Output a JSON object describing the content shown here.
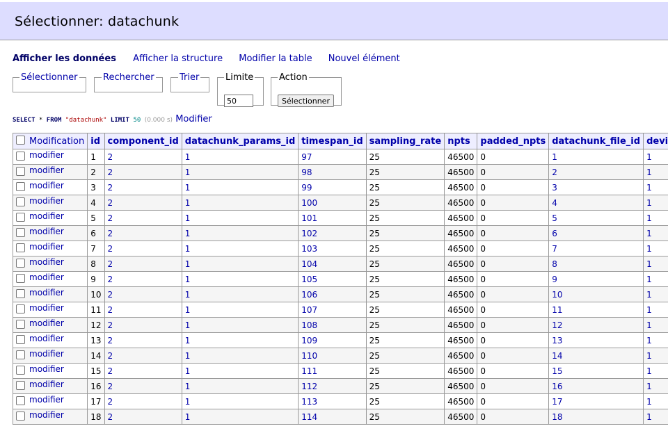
{
  "header": {
    "title": "Sélectionner: datachunk"
  },
  "nav": {
    "items": [
      "Afficher les données",
      "Afficher la structure",
      "Modifier la table",
      "Nouvel élément"
    ]
  },
  "fieldsets": {
    "select": "Sélectionner",
    "search": "Rechercher",
    "sort": "Trier",
    "limit": "Limite",
    "limit_value": "50",
    "action": "Action",
    "action_button": "Sélectionner"
  },
  "sql": {
    "select": "SELECT",
    "star": " * ",
    "from": "FROM",
    "table": "\"datachunk\"",
    "limit": "LIMIT",
    "limit_value": "50",
    "time": "(0.000 s)",
    "edit_link": "Modifier"
  },
  "table": {
    "headers": [
      "Modification",
      "id",
      "component_id",
      "datachunk_params_id",
      "timespan_id",
      "sampling_rate",
      "npts",
      "padded_npts",
      "datachunk_file_id",
      "device_id"
    ],
    "row_link": "modifier",
    "rows": [
      [
        "1",
        "2",
        "1",
        "97",
        "25",
        "46500",
        "0",
        "1",
        "1"
      ],
      [
        "2",
        "2",
        "1",
        "98",
        "25",
        "46500",
        "0",
        "2",
        "1"
      ],
      [
        "3",
        "2",
        "1",
        "99",
        "25",
        "46500",
        "0",
        "3",
        "1"
      ],
      [
        "4",
        "2",
        "1",
        "100",
        "25",
        "46500",
        "0",
        "4",
        "1"
      ],
      [
        "5",
        "2",
        "1",
        "101",
        "25",
        "46500",
        "0",
        "5",
        "1"
      ],
      [
        "6",
        "2",
        "1",
        "102",
        "25",
        "46500",
        "0",
        "6",
        "1"
      ],
      [
        "7",
        "2",
        "1",
        "103",
        "25",
        "46500",
        "0",
        "7",
        "1"
      ],
      [
        "8",
        "2",
        "1",
        "104",
        "25",
        "46500",
        "0",
        "8",
        "1"
      ],
      [
        "9",
        "2",
        "1",
        "105",
        "25",
        "46500",
        "0",
        "9",
        "1"
      ],
      [
        "10",
        "2",
        "1",
        "106",
        "25",
        "46500",
        "0",
        "10",
        "1"
      ],
      [
        "11",
        "2",
        "1",
        "107",
        "25",
        "46500",
        "0",
        "11",
        "1"
      ],
      [
        "12",
        "2",
        "1",
        "108",
        "25",
        "46500",
        "0",
        "12",
        "1"
      ],
      [
        "13",
        "2",
        "1",
        "109",
        "25",
        "46500",
        "0",
        "13",
        "1"
      ],
      [
        "14",
        "2",
        "1",
        "110",
        "25",
        "46500",
        "0",
        "14",
        "1"
      ],
      [
        "15",
        "2",
        "1",
        "111",
        "25",
        "46500",
        "0",
        "15",
        "1"
      ],
      [
        "16",
        "2",
        "1",
        "112",
        "25",
        "46500",
        "0",
        "16",
        "1"
      ],
      [
        "17",
        "2",
        "1",
        "113",
        "25",
        "46500",
        "0",
        "17",
        "1"
      ],
      [
        "18",
        "2",
        "1",
        "114",
        "25",
        "46500",
        "0",
        "18",
        "1"
      ]
    ]
  }
}
